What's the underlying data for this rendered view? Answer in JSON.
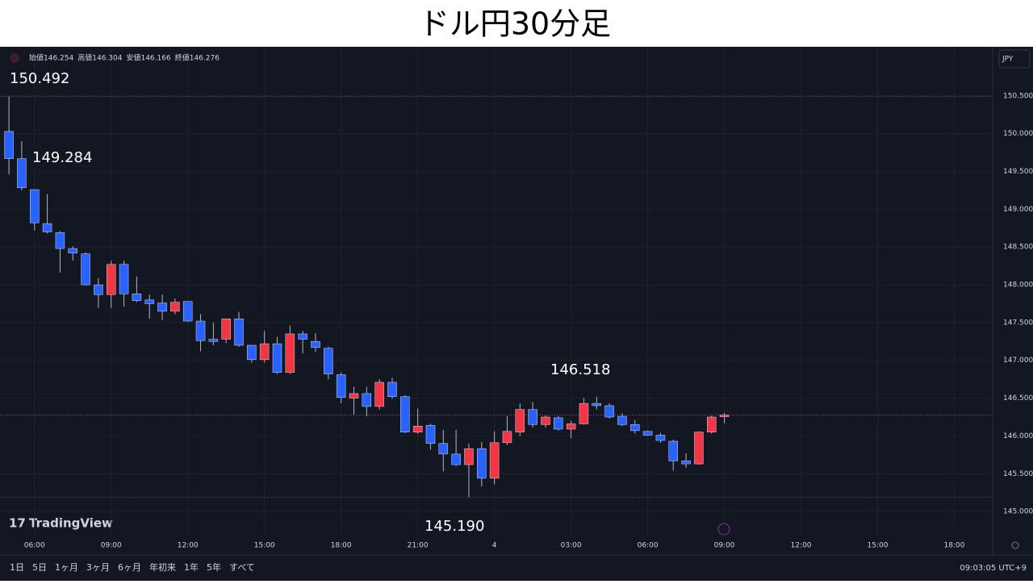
{
  "title": "ドル円30分足",
  "legend": {
    "open_label": "始値",
    "high_label": "高値",
    "low_label": "安値",
    "close_label": "終値"
  },
  "currency": "JPY",
  "logo": "TradingView",
  "toolbar": {
    "ranges": [
      "1日",
      "5日",
      "1ヶ月",
      "3ヶ月",
      "6ヶ月",
      "年初来",
      "1年",
      "5年",
      "すべて"
    ],
    "time": "09:03:05 UTC+9"
  },
  "chart_data": {
    "type": "candlestick",
    "up_color": "#f23645",
    "down_color": "#2962ff",
    "grid": true,
    "open": [
      150.03,
      149.67,
      149.26,
      148.81,
      148.69,
      148.48,
      148.41,
      148.0,
      147.87,
      148.27,
      147.88,
      147.8,
      147.76,
      147.65,
      147.78,
      147.52,
      147.28,
      147.28,
      147.55,
      147.2,
      147.01,
      147.22,
      146.84,
      147.35,
      147.25,
      147.16,
      146.81,
      146.5,
      146.56,
      146.39,
      146.71,
      146.52,
      146.05,
      146.14,
      145.9,
      145.76,
      145.62,
      145.83,
      145.44,
      145.91,
      146.05,
      146.35,
      146.15,
      146.24,
      146.09,
      146.16,
      146.43,
      146.4,
      146.26,
      146.15,
      146.06,
      146.01,
      145.93,
      145.67,
      145.63,
      146.05,
      146.254
    ],
    "high": [
      150.492,
      149.9,
      149.2,
      149.2,
      148.71,
      148.51,
      148.43,
      148.09,
      148.32,
      148.32,
      148.11,
      147.87,
      147.87,
      147.82,
      147.78,
      147.61,
      147.5,
      147.55,
      147.64,
      147.2,
      147.39,
      147.31,
      147.46,
      147.39,
      147.36,
      147.18,
      146.84,
      146.65,
      146.65,
      146.75,
      146.77,
      146.54,
      146.36,
      146.16,
      146.08,
      146.08,
      145.9,
      145.92,
      146.06,
      146.26,
      146.43,
      146.45,
      146.27,
      146.26,
      146.2,
      146.5,
      146.518,
      146.43,
      146.3,
      146.21,
      146.07,
      146.04,
      145.95,
      145.77,
      146.06,
      146.27,
      146.304
    ],
    "low": [
      149.46,
      149.25,
      148.72,
      148.68,
      148.16,
      148.32,
      147.99,
      147.69,
      147.69,
      147.71,
      147.77,
      147.55,
      147.53,
      147.61,
      147.51,
      147.12,
      147.2,
      147.23,
      147.18,
      146.97,
      146.97,
      146.82,
      146.82,
      147.09,
      147.11,
      146.75,
      146.43,
      146.28,
      146.26,
      146.35,
      146.49,
      146.04,
      146.03,
      145.82,
      145.53,
      145.6,
      145.19,
      145.33,
      145.36,
      145.88,
      146.0,
      146.11,
      146.11,
      146.07,
      145.97,
      146.15,
      146.35,
      146.23,
      146.13,
      146.03,
      146.0,
      145.91,
      145.54,
      145.58,
      145.62,
      146.03,
      146.166
    ],
    "close": [
      149.67,
      149.284,
      148.82,
      148.7,
      148.48,
      148.42,
      148.0,
      147.87,
      148.27,
      147.88,
      147.79,
      147.75,
      147.65,
      147.77,
      147.52,
      147.26,
      147.25,
      147.55,
      147.2,
      147.01,
      147.22,
      146.84,
      147.35,
      147.28,
      147.17,
      146.82,
      146.51,
      146.56,
      146.39,
      146.71,
      146.52,
      146.05,
      146.13,
      145.9,
      145.76,
      145.62,
      145.83,
      145.44,
      145.91,
      146.06,
      146.35,
      146.15,
      146.25,
      146.09,
      146.16,
      146.43,
      146.4,
      146.25,
      146.15,
      146.07,
      146.01,
      145.94,
      145.67,
      145.63,
      146.05,
      146.25,
      146.276
    ],
    "annotations": [
      "150.492",
      "149.284",
      "146.518",
      "145.190"
    ],
    "xlim": [
      -0.7,
      77.0
    ],
    "xticks": [
      {
        "value": 2,
        "label": "06:00"
      },
      {
        "value": 8,
        "label": "09:00"
      },
      {
        "value": 14,
        "label": "12:00"
      },
      {
        "value": 20,
        "label": "15:00"
      },
      {
        "value": 26,
        "label": "18:00"
      },
      {
        "value": 32,
        "label": "21:00"
      },
      {
        "value": 38,
        "label": "4"
      },
      {
        "value": 44,
        "label": "03:00"
      },
      {
        "value": 50,
        "label": "06:00"
      },
      {
        "value": 56,
        "label": "09:00"
      },
      {
        "value": 62,
        "label": "12:00"
      },
      {
        "value": 68,
        "label": "15:00"
      },
      {
        "value": 74,
        "label": "18:00"
      }
    ],
    "ylim": [
      144.67,
      151.15
    ],
    "yticks": [
      {
        "value": 145,
        "label": "145.000"
      },
      {
        "value": 145.5,
        "label": "145.500"
      },
      {
        "value": 146,
        "label": "146.000"
      },
      {
        "value": 146.5,
        "label": "146.500"
      },
      {
        "value": 147,
        "label": "147.000"
      },
      {
        "value": 147.5,
        "label": "147.500"
      },
      {
        "value": 148,
        "label": "148.000"
      },
      {
        "value": 148.5,
        "label": "148.500"
      },
      {
        "value": 149,
        "label": "149.000"
      },
      {
        "value": 149.5,
        "label": "149.500"
      },
      {
        "value": 150,
        "label": "150.000"
      },
      {
        "value": 150.5,
        "label": "150.500"
      }
    ]
  }
}
